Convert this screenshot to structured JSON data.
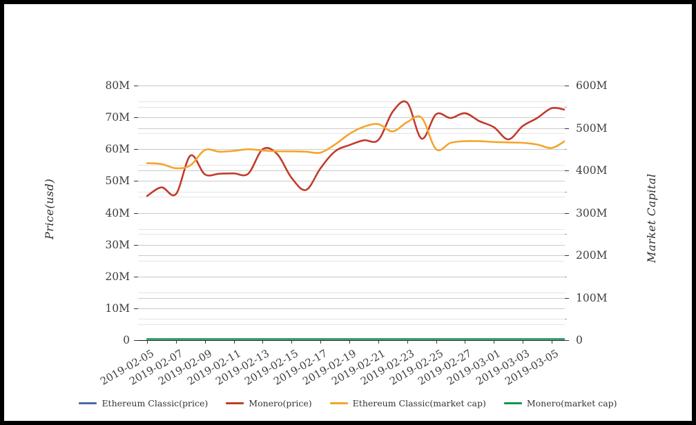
{
  "axes": {
    "left": {
      "title": "Price(usd)",
      "tick_values": [
        0,
        10,
        20,
        30,
        40,
        50,
        60,
        70,
        80
      ],
      "tick_labels": [
        "0",
        "10M",
        "20M",
        "30M",
        "40M",
        "50M",
        "60M",
        "70M",
        "80M"
      ],
      "max": 80
    },
    "right": {
      "title": "Market Capital",
      "tick_values": [
        0,
        100,
        200,
        300,
        400,
        500,
        600
      ],
      "tick_labels": [
        "0",
        "100M",
        "200M",
        "300M",
        "400M",
        "500M",
        "600M"
      ],
      "max": 600
    },
    "x": {
      "tick_labels": [
        "2019-02-05",
        "2019-02-07",
        "2019-02-09",
        "2019-02-11",
        "2019-02-13",
        "2019-02-15",
        "2019-02-17",
        "2019-02-19",
        "2019-02-21",
        "2019-02-23",
        "2019-02-25",
        "2019-02-27",
        "2019-03-01",
        "2019-03-03",
        "2019-03-05"
      ]
    }
  },
  "legend": [
    {
      "label": "Ethereum Classic(price)",
      "color": "#4a69a0"
    },
    {
      "label": "Monero(price)",
      "color": "#c23a2b"
    },
    {
      "label": "Ethereum Classic(market cap)",
      "color": "#f5a42b"
    },
    {
      "label": "Monero(market cap)",
      "color": "#15934d"
    }
  ],
  "chart_data": {
    "type": "line",
    "x": [
      "2019-02-05",
      "2019-02-06",
      "2019-02-07",
      "2019-02-08",
      "2019-02-09",
      "2019-02-10",
      "2019-02-11",
      "2019-02-12",
      "2019-02-13",
      "2019-02-14",
      "2019-02-15",
      "2019-02-16",
      "2019-02-17",
      "2019-02-18",
      "2019-02-19",
      "2019-02-20",
      "2019-02-21",
      "2019-02-22",
      "2019-02-23",
      "2019-02-24",
      "2019-02-25",
      "2019-02-26",
      "2019-02-27",
      "2019-02-28",
      "2019-03-01",
      "2019-03-02",
      "2019-03-03",
      "2019-03-04",
      "2019-03-05",
      "2019-03-06"
    ],
    "x_tick_step": 2,
    "ylabel_left": "Price(usd)",
    "ylabel_right": "Market Capital",
    "ylim_left": [
      0,
      80
    ],
    "ylim_right": [
      0,
      600
    ],
    "unit": "M",
    "grid": true,
    "legend_position": "bottom",
    "series": [
      {
        "name": "Ethereum Classic(price)",
        "axis": "left",
        "color": "#4a69a0",
        "width": 2,
        "values": [
          0,
          0,
          0,
          0,
          0,
          0,
          0,
          0,
          0,
          0,
          0,
          0,
          0,
          0,
          0,
          0,
          0,
          0,
          0,
          0,
          0,
          0,
          0,
          0,
          0,
          0,
          0,
          0,
          0,
          0
        ]
      },
      {
        "name": "Monero(price)",
        "axis": "left",
        "color": "#c23a2b",
        "width": 2.6,
        "values": [
          45.3,
          48.0,
          45.9,
          58.0,
          52.1,
          52.3,
          52.4,
          52.3,
          60.0,
          58.5,
          51.0,
          47.2,
          54.0,
          59.3,
          61.3,
          62.8,
          62.9,
          71.8,
          74.6,
          63.3,
          71.0,
          69.8,
          71.3,
          68.8,
          66.9,
          63.1,
          67.3,
          69.8,
          72.9,
          72.3
        ]
      },
      {
        "name": "Ethereum Classic(market cap)",
        "axis": "right",
        "color": "#f5a42b",
        "width": 2.6,
        "values": [
          417,
          415,
          405,
          412,
          448,
          444,
          446,
          450,
          447,
          445,
          445,
          444,
          442,
          461,
          486,
          503,
          509,
          492,
          514,
          524,
          450,
          465,
          469,
          469,
          467,
          466,
          465,
          461,
          453,
          471
        ]
      },
      {
        "name": "Monero(market cap)",
        "axis": "right",
        "color": "#15934d",
        "width": 2.4,
        "values": [
          0,
          0,
          0,
          0,
          0,
          0,
          0,
          0,
          0,
          0,
          0,
          0,
          0,
          0,
          0,
          0,
          0,
          0,
          0,
          0,
          0,
          0,
          0,
          0,
          0,
          0,
          0,
          0,
          0,
          0
        ]
      }
    ]
  }
}
